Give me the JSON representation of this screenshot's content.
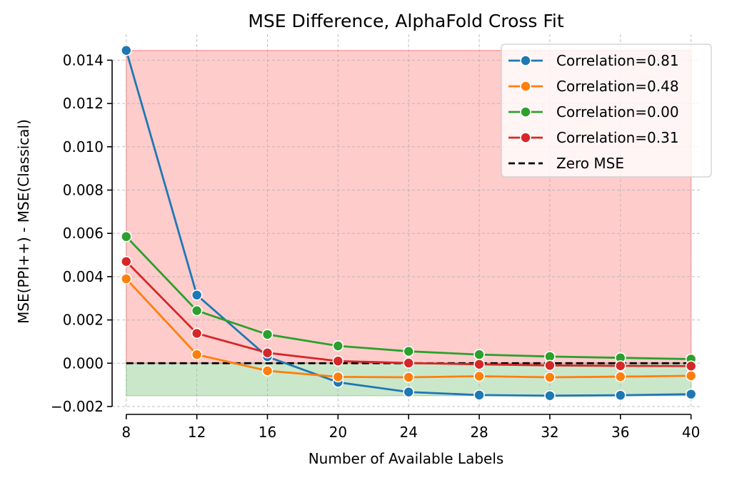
{
  "chart_data": {
    "type": "line",
    "title": "MSE Difference, AlphaFold Cross Fit",
    "xlabel": "Number of Available Labels",
    "ylabel": "MSE(PPI++) - MSE(Classical)",
    "x": [
      8,
      12,
      16,
      20,
      24,
      28,
      32,
      36,
      40
    ],
    "xticks": [
      8,
      12,
      16,
      20,
      24,
      28,
      32,
      36,
      40
    ],
    "xlim": [
      7.2,
      40.5
    ],
    "ylim": [
      -0.0021,
      0.0152
    ],
    "yticks": [
      -0.002,
      0.0,
      0.002,
      0.004,
      0.006,
      0.008,
      0.01,
      0.012,
      0.014
    ],
    "ytick_labels": [
      "−0.002",
      "0.000",
      "0.002",
      "0.004",
      "0.006",
      "0.008",
      "0.010",
      "0.012",
      "0.014"
    ],
    "grid": true,
    "legend_position": "top-right",
    "series": [
      {
        "name": "Correlation=0.81",
        "color": "#1f77b4",
        "values": [
          0.01445,
          0.00315,
          0.0003,
          -0.00088,
          -0.00133,
          -0.00147,
          -0.0015,
          -0.00148,
          -0.00143
        ]
      },
      {
        "name": "Correlation=0.48",
        "color": "#ff7f0e",
        "values": [
          0.0039,
          0.0004,
          -0.00035,
          -0.00063,
          -0.00065,
          -0.0006,
          -0.00065,
          -0.00062,
          -0.00058
        ]
      },
      {
        "name": "Correlation=0.00",
        "color": "#2ca02c",
        "values": [
          0.00585,
          0.00243,
          0.00133,
          0.0008,
          0.00055,
          0.0004,
          0.00031,
          0.00025,
          0.00019
        ]
      },
      {
        "name": "Correlation=0.31",
        "color": "#d62728",
        "values": [
          0.0047,
          0.00138,
          0.00048,
          0.0001,
          1e-05,
          -5e-05,
          -0.0001,
          -0.00012,
          -0.00013
        ]
      }
    ],
    "reference_line": {
      "name": "Zero MSE",
      "value": 0.0,
      "color": "#000000",
      "style": "dashed"
    },
    "shaded_regions": [
      {
        "name": "worse-region",
        "from": 0.0,
        "to": 0.01445,
        "x_from": 8,
        "x_to": 40,
        "color": "#ff0000",
        "opacity": 0.2
      },
      {
        "name": "better-region",
        "from": -0.0015,
        "to": 0.0,
        "x_from": 8,
        "x_to": 40,
        "color": "#2ca02c",
        "opacity": 0.25
      }
    ]
  }
}
